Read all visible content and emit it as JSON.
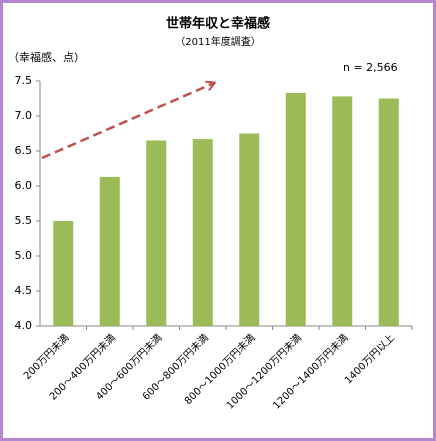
{
  "chart_data": {
    "type": "bar",
    "title": "世帯年収と幸福感",
    "subtitle": "（2011年度調査）",
    "y_label": "（幸福感、点）",
    "annotation": "n = 2,566",
    "categories": [
      "200万円未満",
      "200～400万円未満",
      "400～600万円未満",
      "600～800万円未満",
      "800～1000万円未満",
      "1000～1200万円未満",
      "1200～1400万円未満",
      "1400万円以上"
    ],
    "values": [
      5.5,
      6.13,
      6.65,
      6.67,
      6.75,
      7.33,
      7.28,
      7.25
    ],
    "color": "#9bbb59",
    "ylim": [
      4,
      7.5
    ],
    "yticks": [
      {
        "value": 4,
        "label": "4.0"
      },
      4.5,
      {
        "value": 5,
        "label": "5.0"
      },
      5.5,
      {
        "value": 6,
        "label": "6.0"
      },
      6.5,
      {
        "value": 7,
        "label": "7.0"
      },
      7.5
    ],
    "grid": false
  }
}
